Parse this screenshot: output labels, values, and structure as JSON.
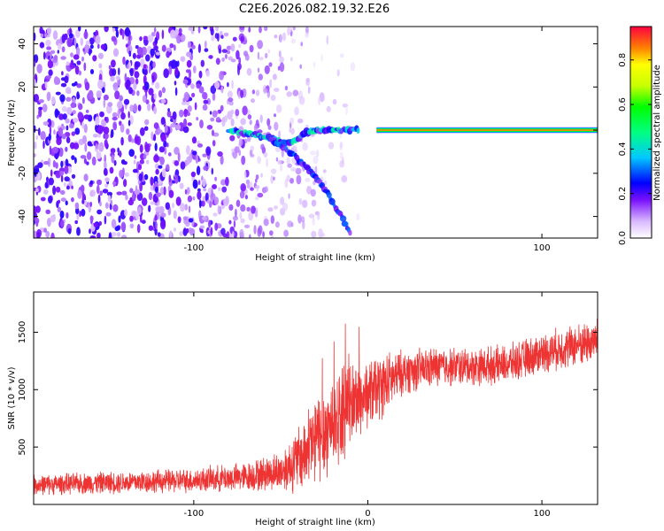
{
  "title": "C2E6.2026.082.19.32.E26",
  "chart_data": [
    {
      "type": "heatmap",
      "name": "spectrogram",
      "xlabel": "Height of straight line (km)",
      "ylabel": "Frequency (Hz)",
      "xlim": [
        -192,
        132
      ],
      "ylim": [
        -50,
        48
      ],
      "xticks": [
        -100,
        100
      ],
      "xtick_labels": [
        "-100",
        "100"
      ],
      "yticks": [
        -40,
        -20,
        0,
        20,
        40
      ],
      "ytick_labels": [
        "-40",
        "-20",
        "0",
        "20",
        "40"
      ],
      "carrier": {
        "x_start": 5,
        "x_end": 132,
        "frequency": 0,
        "amplitude": 0.9
      },
      "broadband_noise": {
        "x_start": -192,
        "x_end": -35,
        "amplitude": 0.25
      },
      "tracks": [
        {
          "name": "main-branch",
          "x": [
            -80,
            -60,
            -45,
            -33,
            -20,
            -5
          ],
          "y": [
            0,
            -3,
            -6,
            0,
            0,
            0
          ]
        },
        {
          "name": "lower-branch",
          "x": [
            -55,
            -45,
            -35,
            -25,
            -15,
            -10
          ],
          "y": [
            -5,
            -10,
            -17,
            -27,
            -40,
            -48
          ]
        }
      ],
      "colorbar": {
        "label": "Normalized spectral amplitude",
        "min": 0.0,
        "max": 0.95,
        "ticks": [
          0.0,
          0.2,
          0.4,
          0.6,
          0.8
        ],
        "tick_labels": [
          "0.0",
          "0.2",
          "0.4",
          "0.6",
          "0.8"
        ]
      }
    },
    {
      "type": "line",
      "name": "snr",
      "xlabel": "Height of straight line (km)",
      "ylabel": "SNR (10 * v/v)",
      "xlim": [
        -192,
        132
      ],
      "ylim": [
        0,
        1850
      ],
      "xticks": [
        -100,
        0,
        100
      ],
      "xtick_labels": [
        "-100",
        "0",
        "100"
      ],
      "yticks": [
        500,
        1000,
        1500
      ],
      "ytick_labels": [
        "500",
        "1000",
        "1500"
      ],
      "color": "#ee3333",
      "envelope": {
        "x": [
          -192,
          -150,
          -100,
          -70,
          -50,
          -40,
          -30,
          -20,
          -10,
          0,
          10,
          20,
          40,
          60,
          80,
          100,
          132
        ],
        "mean": [
          170,
          190,
          210,
          240,
          290,
          390,
          560,
          720,
          880,
          960,
          1050,
          1150,
          1200,
          1200,
          1220,
          1320,
          1430
        ],
        "spread": [
          90,
          100,
          110,
          130,
          180,
          300,
          420,
          450,
          380,
          320,
          280,
          200,
          180,
          170,
          170,
          180,
          200
        ]
      }
    }
  ]
}
